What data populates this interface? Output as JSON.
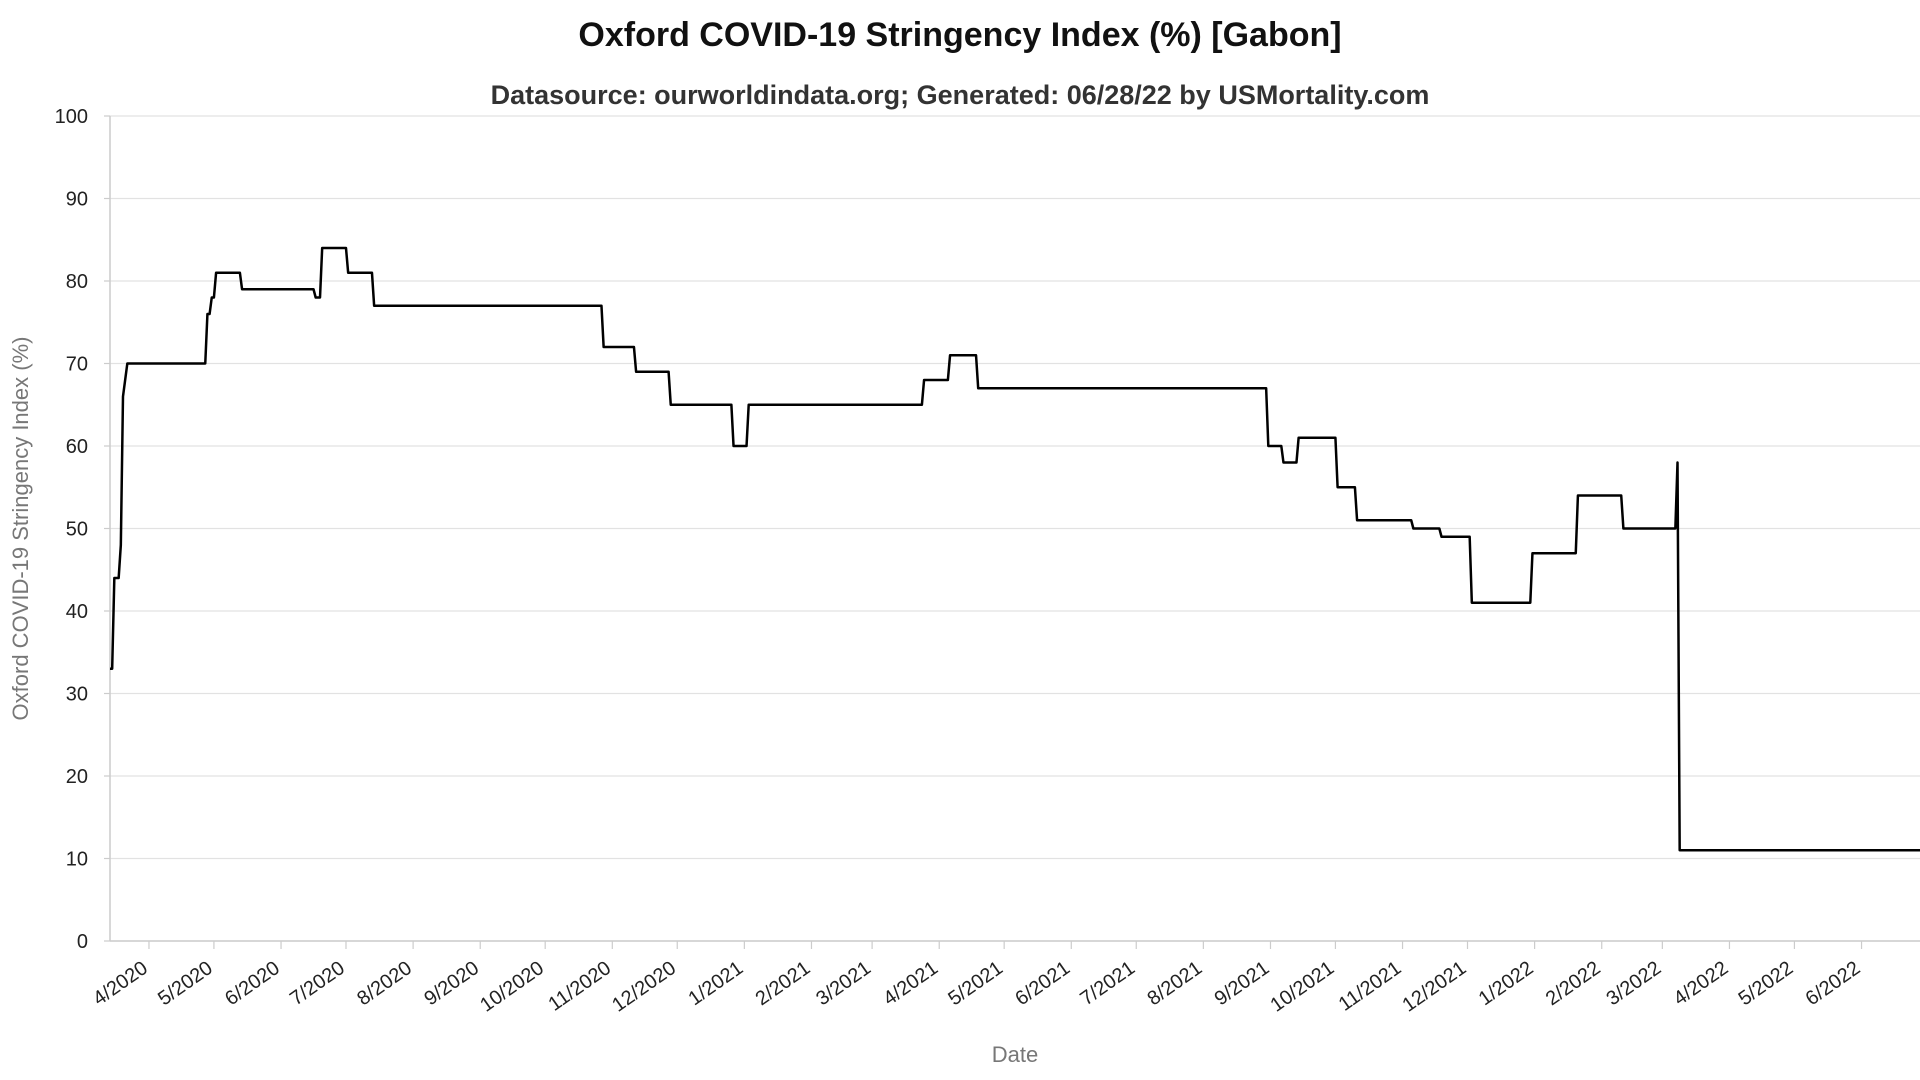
{
  "chart_data": {
    "type": "line",
    "title": "Oxford COVID-19 Stringency Index (%) [Gabon]",
    "subtitle": "Datasource: ourworldindata.org; Generated: 06/28/22 by USMortality.com",
    "xlabel": "Date",
    "ylabel": "Oxford COVID-19 Stringency Index (%)",
    "ylim": [
      0,
      100
    ],
    "xlim": [
      "2020-03-14",
      "2022-06-28"
    ],
    "y_ticks": [
      0,
      10,
      20,
      30,
      40,
      50,
      60,
      70,
      80,
      90,
      100
    ],
    "x_ticks": [
      {
        "label": "4/2020",
        "date": "2020-04-01"
      },
      {
        "label": "5/2020",
        "date": "2020-05-01"
      },
      {
        "label": "6/2020",
        "date": "2020-06-01"
      },
      {
        "label": "7/2020",
        "date": "2020-07-01"
      },
      {
        "label": "8/2020",
        "date": "2020-08-01"
      },
      {
        "label": "9/2020",
        "date": "2020-09-01"
      },
      {
        "label": "10/2020",
        "date": "2020-10-01"
      },
      {
        "label": "11/2020",
        "date": "2020-11-01"
      },
      {
        "label": "12/2020",
        "date": "2020-12-01"
      },
      {
        "label": "1/2021",
        "date": "2021-01-01"
      },
      {
        "label": "2/2021",
        "date": "2021-02-01"
      },
      {
        "label": "3/2021",
        "date": "2021-03-01"
      },
      {
        "label": "4/2021",
        "date": "2021-04-01"
      },
      {
        "label": "5/2021",
        "date": "2021-05-01"
      },
      {
        "label": "6/2021",
        "date": "2021-06-01"
      },
      {
        "label": "7/2021",
        "date": "2021-07-01"
      },
      {
        "label": "8/2021",
        "date": "2021-08-01"
      },
      {
        "label": "9/2021",
        "date": "2021-09-01"
      },
      {
        "label": "10/2021",
        "date": "2021-10-01"
      },
      {
        "label": "11/2021",
        "date": "2021-11-01"
      },
      {
        "label": "12/2021",
        "date": "2021-12-01"
      },
      {
        "label": "1/2022",
        "date": "2022-01-01"
      },
      {
        "label": "2/2022",
        "date": "2022-02-01"
      },
      {
        "label": "3/2022",
        "date": "2022-03-01"
      },
      {
        "label": "4/2022",
        "date": "2022-04-01"
      },
      {
        "label": "5/2022",
        "date": "2022-05-01"
      },
      {
        "label": "6/2022",
        "date": "2022-06-01"
      }
    ],
    "grid": true,
    "line_color": "#000000",
    "series": [
      {
        "x": [
          "2020-03-14",
          "2020-03-15",
          "2020-03-16",
          "2020-03-18",
          "2020-03-19",
          "2020-03-20",
          "2020-03-22",
          "2020-03-23",
          "2020-04-27",
          "2020-04-28",
          "2020-04-29",
          "2020-04-30",
          "2020-05-01",
          "2020-05-02",
          "2020-05-03",
          "2020-05-04",
          "2020-05-05",
          "2020-05-06",
          "2020-05-07",
          "2020-05-08",
          "2020-05-09",
          "2020-05-10",
          "2020-05-11",
          "2020-05-12",
          "2020-05-13",
          "2020-05-14",
          "2020-05-27",
          "2020-05-28",
          "2020-06-16",
          "2020-06-17",
          "2020-06-19",
          "2020-06-20",
          "2020-07-01",
          "2020-07-02",
          "2020-07-13",
          "2020-07-14",
          "2020-10-27",
          "2020-10-28",
          "2020-11-11",
          "2020-11-12",
          "2020-11-27",
          "2020-11-28",
          "2020-12-26",
          "2020-12-27",
          "2021-01-02",
          "2021-01-03",
          "2021-03-24",
          "2021-03-25",
          "2021-04-05",
          "2021-04-06",
          "2021-04-18",
          "2021-04-19",
          "2021-08-30",
          "2021-08-31",
          "2021-09-06",
          "2021-09-07",
          "2021-09-13",
          "2021-09-14",
          "2021-10-01",
          "2021-10-02",
          "2021-10-10",
          "2021-10-11",
          "2021-11-05",
          "2021-11-06",
          "2021-11-18",
          "2021-11-19",
          "2021-12-02",
          "2021-12-03",
          "2021-12-30",
          "2021-12-31",
          "2022-01-20",
          "2022-01-21",
          "2022-02-10",
          "2022-02-11",
          "2022-02-28",
          "2022-03-01",
          "2022-03-07",
          "2022-03-08",
          "2022-03-09",
          "2022-06-28"
        ],
        "values": [
          33,
          33,
          44,
          44,
          48,
          66,
          70,
          70,
          70,
          76,
          76,
          78,
          78,
          81,
          81,
          81,
          81,
          81,
          81,
          81,
          81,
          81,
          81,
          81,
          81,
          79,
          79,
          79,
          79,
          78,
          78,
          84,
          84,
          81,
          81,
          77,
          77,
          72,
          72,
          69,
          69,
          65,
          65,
          60,
          60,
          65,
          65,
          68,
          68,
          71,
          71,
          67,
          67,
          60,
          60,
          58,
          58,
          61,
          61,
          55,
          55,
          51,
          51,
          50,
          50,
          49,
          49,
          41,
          41,
          47,
          47,
          54,
          54,
          50,
          50,
          50,
          50,
          58,
          11,
          11
        ]
      }
    ]
  }
}
